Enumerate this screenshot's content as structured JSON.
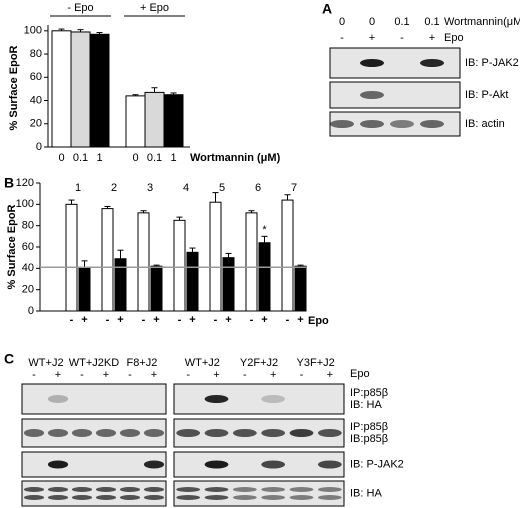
{
  "panels": {
    "a": "A",
    "b": "B",
    "c": "C"
  },
  "chart_data": [
    {
      "type": "bar",
      "ylabel": "% Surface EpoR",
      "xlabel": "Wortmannin (μM)",
      "groups": [
        "- Epo",
        "+ Epo"
      ],
      "categories": [
        "0",
        "0.1",
        "1",
        "0",
        "0.1",
        "1"
      ],
      "values": [
        100,
        99,
        97,
        44,
        47,
        45
      ],
      "errors": [
        1.5,
        2,
        1.5,
        1,
        4,
        1.5
      ],
      "colors": [
        "#ffffff",
        "#d9d9d9",
        "#000000",
        "#ffffff",
        "#d9d9d9",
        "#000000"
      ],
      "ylim": [
        0,
        105
      ],
      "yticks": [
        0,
        20,
        40,
        60,
        80,
        100
      ]
    },
    {
      "type": "bar",
      "ylabel": "% Surface EpoR",
      "xlabel": "Epo",
      "categories": [
        "1",
        "2",
        "3",
        "4",
        "5",
        "6",
        "7"
      ],
      "series": [
        {
          "name": "-",
          "color": "#ffffff",
          "values": [
            100,
            96,
            92,
            85,
            102,
            92,
            104
          ],
          "errors": [
            4,
            2,
            2,
            3,
            9,
            2,
            5
          ]
        },
        {
          "name": "+",
          "color": "#000000",
          "values": [
            40,
            49,
            42,
            55,
            50,
            64,
            42
          ],
          "errors": [
            7,
            8,
            1,
            4,
            4,
            6,
            1
          ]
        }
      ],
      "significance": [
        null,
        null,
        null,
        null,
        null,
        "*",
        null
      ],
      "reference_line": 41,
      "reference_color": "#999999",
      "ylim": [
        0,
        120
      ],
      "yticks": [
        0,
        20,
        40,
        60,
        80,
        100,
        120
      ]
    }
  ],
  "blot_a": {
    "wortmannin_label": "Wortmannin(μM)",
    "epo_label": "Epo",
    "wortmannin": [
      "0",
      "0",
      "0.1",
      "0.1"
    ],
    "epo": [
      "-",
      "+",
      "-",
      "+"
    ],
    "rows": [
      "IB: P-JAK2",
      "IB: P-Akt",
      "IB: actin"
    ]
  },
  "blot_c": {
    "epo_label": "Epo",
    "epo": [
      "-",
      "+"
    ],
    "groups": [
      [
        "WT+J2",
        "WT+J2KD",
        "F8+J2"
      ],
      [
        "WT+J2",
        "Y2F+J2",
        "Y3F+J2"
      ]
    ],
    "rows": [
      [
        "IP:p85β",
        "IB: HA"
      ],
      [
        "IP:p85β",
        "IB:p85β"
      ],
      [
        "IB: P-JAK2"
      ],
      [
        "IB: HA"
      ]
    ]
  }
}
